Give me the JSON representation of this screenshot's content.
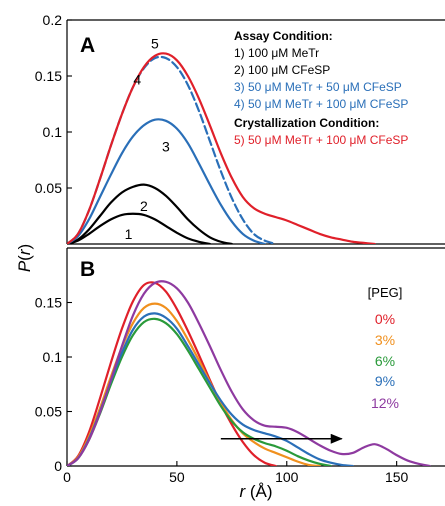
{
  "chart_data": [
    {
      "type": "line",
      "panel": "A",
      "xlim": [
        0,
        172
      ],
      "ylim": [
        0,
        0.2
      ],
      "yticks": [
        "0.2",
        "0.15",
        "0.1",
        "0.05",
        ""
      ],
      "ytick_values": [
        0.2,
        0.15,
        0.1,
        0.05,
        0
      ],
      "xticks": [],
      "legend_headers": [
        "Assay Condition:",
        "Crystallization Condition:"
      ],
      "legend": [
        {
          "label": "1) 100 μM MeTr",
          "color": "#000000"
        },
        {
          "label": "2) 100 μM CFeSP",
          "color": "#000000"
        },
        {
          "label": "3) 50 μM MeTr + 50 μM CFeSP",
          "color": "#2a6fb8"
        },
        {
          "label": "4) 50 μM MeTr + 100 μM CFeSP",
          "color": "#2a6fb8"
        },
        {
          "label": "5) 50 μM MeTr + 100 μM CFeSP",
          "color": "#e0202a"
        }
      ],
      "series": [
        {
          "name": "1",
          "color": "#000000",
          "dash": false,
          "label_at": [
            28,
            0.009
          ],
          "x": [
            0,
            5,
            10,
            15,
            20,
            25,
            30,
            35,
            40,
            45,
            50,
            55,
            60,
            65
          ],
          "y": [
            0,
            0.003,
            0.009,
            0.016,
            0.022,
            0.026,
            0.027,
            0.026,
            0.022,
            0.016,
            0.01,
            0.005,
            0.002,
            0
          ]
        },
        {
          "name": "2",
          "color": "#000000",
          "dash": false,
          "label_at": [
            35,
            0.034
          ],
          "x": [
            0,
            5,
            10,
            15,
            20,
            25,
            30,
            35,
            40,
            45,
            50,
            55,
            60,
            65,
            70,
            75
          ],
          "y": [
            0,
            0.004,
            0.013,
            0.025,
            0.037,
            0.046,
            0.051,
            0.053,
            0.05,
            0.043,
            0.033,
            0.022,
            0.013,
            0.006,
            0.002,
            0
          ]
        },
        {
          "name": "3",
          "color": "#2a6fb8",
          "dash": false,
          "label_at": [
            45,
            0.087
          ],
          "x": [
            0,
            5,
            10,
            15,
            20,
            25,
            30,
            35,
            40,
            45,
            50,
            55,
            60,
            65,
            70,
            75,
            80,
            85,
            90
          ],
          "y": [
            0,
            0.007,
            0.022,
            0.042,
            0.062,
            0.081,
            0.096,
            0.106,
            0.111,
            0.11,
            0.103,
            0.09,
            0.072,
            0.053,
            0.035,
            0.02,
            0.009,
            0.003,
            0
          ]
        },
        {
          "name": "4",
          "color": "#2a6fb8",
          "dash": true,
          "label_at": [
            32,
            0.147
          ],
          "x": [
            0,
            5,
            10,
            15,
            20,
            25,
            30,
            35,
            40,
            45,
            50,
            55,
            60,
            65,
            70,
            75,
            80,
            85,
            90,
            95
          ],
          "y": [
            0,
            0.009,
            0.03,
            0.058,
            0.088,
            0.116,
            0.14,
            0.157,
            0.166,
            0.166,
            0.158,
            0.142,
            0.119,
            0.092,
            0.065,
            0.041,
            0.022,
            0.009,
            0.003,
            0
          ]
        },
        {
          "name": "5",
          "color": "#e0202a",
          "dash": false,
          "label_at": [
            40,
            0.179
          ],
          "x": [
            0,
            5,
            10,
            15,
            20,
            25,
            30,
            35,
            40,
            45,
            50,
            55,
            60,
            65,
            70,
            75,
            80,
            85,
            90,
            95,
            100,
            105,
            110,
            115,
            120,
            125,
            130,
            135,
            140
          ],
          "y": [
            0,
            0.009,
            0.03,
            0.058,
            0.088,
            0.116,
            0.14,
            0.158,
            0.168,
            0.17,
            0.164,
            0.15,
            0.13,
            0.106,
            0.081,
            0.059,
            0.042,
            0.032,
            0.027,
            0.024,
            0.021,
            0.017,
            0.013,
            0.009,
            0.006,
            0.004,
            0.002,
            0.001,
            0
          ]
        }
      ]
    },
    {
      "type": "line",
      "panel": "B",
      "xlim": [
        0,
        172
      ],
      "ylim": [
        0,
        0.2
      ],
      "yticks": [
        "0.15",
        "0.1",
        "0.05",
        "0"
      ],
      "ytick_values": [
        0.15,
        0.1,
        0.05,
        0
      ],
      "xticks": [
        "0",
        "50",
        "100",
        "150"
      ],
      "xtick_values": [
        0,
        50,
        100,
        150
      ],
      "xlabel_var": "r",
      "xlabel_unit": "(Å)",
      "ylabel": "P(r)",
      "legend_title": "[PEG]",
      "legend": [
        {
          "label": "0%",
          "color": "#e0202a"
        },
        {
          "label": "3%",
          "color": "#f0901e"
        },
        {
          "label": "6%",
          "color": "#2a9a3a"
        },
        {
          "label": "9%",
          "color": "#2a6fb8"
        },
        {
          "label": "12%",
          "color": "#8e3aa0"
        }
      ],
      "arrow": {
        "x_from": 70,
        "x_to": 125,
        "y": 0.025
      },
      "series": [
        {
          "name": "0%",
          "color": "#e0202a",
          "x": [
            0,
            5,
            10,
            15,
            20,
            25,
            30,
            35,
            40,
            45,
            50,
            55,
            60,
            65,
            70,
            75,
            80,
            85,
            90,
            95
          ],
          "y": [
            0,
            0.009,
            0.031,
            0.062,
            0.095,
            0.126,
            0.151,
            0.166,
            0.168,
            0.16,
            0.144,
            0.124,
            0.102,
            0.079,
            0.057,
            0.038,
            0.022,
            0.01,
            0.003,
            0
          ]
        },
        {
          "name": "3%",
          "color": "#f0901e",
          "x": [
            0,
            5,
            10,
            15,
            20,
            25,
            30,
            35,
            40,
            45,
            50,
            55,
            60,
            65,
            70,
            75,
            80,
            85,
            90,
            95,
            100,
            105,
            110,
            115
          ],
          "y": [
            0,
            0.008,
            0.027,
            0.053,
            0.082,
            0.109,
            0.131,
            0.145,
            0.149,
            0.145,
            0.133,
            0.116,
            0.097,
            0.077,
            0.058,
            0.042,
            0.03,
            0.022,
            0.016,
            0.012,
            0.008,
            0.004,
            0.001,
            0
          ]
        },
        {
          "name": "6%",
          "color": "#2a9a3a",
          "x": [
            0,
            5,
            10,
            15,
            20,
            25,
            30,
            35,
            40,
            45,
            50,
            55,
            60,
            65,
            70,
            75,
            80,
            85,
            90,
            95,
            100,
            105,
            110,
            115,
            120
          ],
          "y": [
            0,
            0.007,
            0.024,
            0.048,
            0.075,
            0.1,
            0.12,
            0.132,
            0.135,
            0.131,
            0.121,
            0.106,
            0.089,
            0.072,
            0.055,
            0.041,
            0.031,
            0.025,
            0.021,
            0.018,
            0.014,
            0.009,
            0.005,
            0.002,
            0
          ]
        },
        {
          "name": "9%",
          "color": "#2a6fb8",
          "x": [
            0,
            5,
            10,
            15,
            20,
            25,
            30,
            35,
            40,
            45,
            50,
            55,
            60,
            65,
            70,
            75,
            80,
            85,
            90,
            95,
            100,
            105,
            110,
            115,
            120,
            125,
            130
          ],
          "y": [
            0,
            0.007,
            0.025,
            0.05,
            0.078,
            0.104,
            0.125,
            0.137,
            0.14,
            0.136,
            0.126,
            0.11,
            0.093,
            0.076,
            0.06,
            0.047,
            0.038,
            0.033,
            0.03,
            0.027,
            0.023,
            0.017,
            0.011,
            0.006,
            0.003,
            0.001,
            0
          ]
        },
        {
          "name": "12%",
          "color": "#8e3aa0",
          "x": [
            0,
            5,
            10,
            15,
            20,
            25,
            30,
            35,
            40,
            45,
            50,
            55,
            60,
            65,
            70,
            75,
            80,
            85,
            90,
            95,
            100,
            105,
            110,
            115,
            120,
            125,
            130,
            135,
            140,
            145,
            150,
            155,
            160,
            165
          ],
          "y": [
            0,
            0.007,
            0.024,
            0.049,
            0.079,
            0.11,
            0.138,
            0.158,
            0.168,
            0.169,
            0.163,
            0.15,
            0.131,
            0.11,
            0.088,
            0.068,
            0.052,
            0.042,
            0.037,
            0.036,
            0.035,
            0.031,
            0.025,
            0.019,
            0.014,
            0.011,
            0.012,
            0.017,
            0.02,
            0.016,
            0.01,
            0.005,
            0.002,
            0
          ]
        }
      ]
    }
  ]
}
